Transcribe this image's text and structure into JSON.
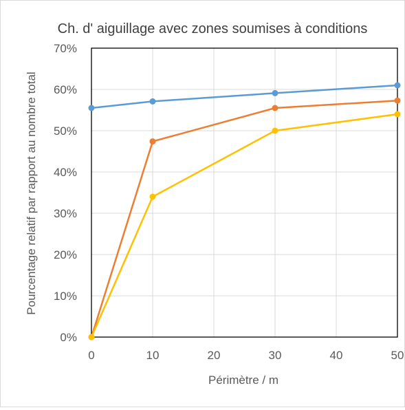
{
  "chart_data": {
    "type": "line",
    "title": "Ch. d' aiguillage avec zones soumises à conditions",
    "xlabel": "Périmètre / m",
    "ylabel": "Pourcentage relatif par rapport  au nombre  total",
    "xlim": [
      0,
      50
    ],
    "ylim": [
      0,
      70
    ],
    "x_ticks": [
      0,
      10,
      20,
      30,
      40,
      50
    ],
    "y_ticks": [
      0,
      10,
      20,
      30,
      40,
      50,
      60,
      70
    ],
    "x_tick_labels": [
      "0",
      "10",
      "20",
      "30",
      "40",
      "50"
    ],
    "y_tick_labels": [
      "0%",
      "10%",
      "20%",
      "30%",
      "40%",
      "50%",
      "60%",
      "70%"
    ],
    "grid": true,
    "legend": "none",
    "x": [
      0,
      10,
      30,
      50
    ],
    "series": [
      {
        "color": "#5b9bd5",
        "values": [
          55.5,
          57.1,
          59.1,
          61.0
        ]
      },
      {
        "color": "#ed7d31",
        "values": [
          0,
          47.4,
          55.5,
          57.3
        ]
      },
      {
        "color": "#ffc000",
        "values": [
          0,
          34.0,
          50.0,
          54.0
        ]
      }
    ]
  }
}
